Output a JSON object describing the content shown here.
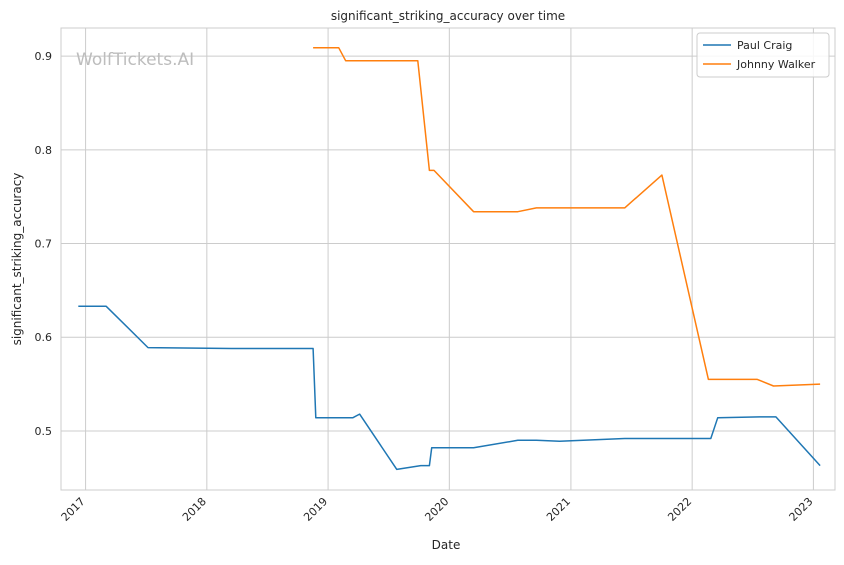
{
  "chart_data": {
    "type": "line",
    "title": "significant_striking_accuracy over time",
    "xlabel": "Date",
    "ylabel": "significant_striking_accuracy",
    "watermark": "WolfTickets.AI",
    "x_ticks": [
      "2017",
      "2018",
      "2019",
      "2020",
      "2021",
      "2022",
      "2023"
    ],
    "y_ticks": [
      "0.5",
      "0.6",
      "0.7",
      "0.8",
      "0.9"
    ],
    "xlim": [
      "2016-10-19",
      "2023-03-07"
    ],
    "ylim": [
      0.437,
      0.93
    ],
    "grid": true,
    "legend_position": "top-right",
    "series": [
      {
        "name": "Paul Craig",
        "color": "#1f77b4",
        "points": [
          [
            "2016-12-10",
            0.633
          ],
          [
            "2017-03-04",
            0.633
          ],
          [
            "2017-07-08",
            0.589
          ],
          [
            "2018-03-17",
            0.588
          ],
          [
            "2018-11-17",
            0.588
          ],
          [
            "2018-11-25",
            0.514
          ],
          [
            "2019-03-16",
            0.514
          ],
          [
            "2019-04-06",
            0.518
          ],
          [
            "2019-07-27",
            0.459
          ],
          [
            "2019-10-07",
            0.463
          ],
          [
            "2019-11-02",
            0.463
          ],
          [
            "2019-11-09",
            0.482
          ],
          [
            "2020-03-14",
            0.482
          ],
          [
            "2020-07-25",
            0.49
          ],
          [
            "2020-09-19",
            0.49
          ],
          [
            "2020-11-28",
            0.489
          ],
          [
            "2021-06-12",
            0.492
          ],
          [
            "2022-02-26",
            0.492
          ],
          [
            "2022-03-19",
            0.514
          ],
          [
            "2022-07-23",
            0.515
          ],
          [
            "2022-09-10",
            0.515
          ],
          [
            "2023-01-21",
            0.463
          ]
        ]
      },
      {
        "name": "Johnny Walker",
        "color": "#ff7f0e",
        "points": [
          [
            "2018-11-17",
            0.909
          ],
          [
            "2019-02-02",
            0.909
          ],
          [
            "2019-02-23",
            0.895
          ],
          [
            "2019-09-28",
            0.895
          ],
          [
            "2019-11-02",
            0.778
          ],
          [
            "2019-11-16",
            0.778
          ],
          [
            "2020-03-14",
            0.734
          ],
          [
            "2020-07-25",
            0.734
          ],
          [
            "2020-09-19",
            0.738
          ],
          [
            "2021-06-12",
            0.738
          ],
          [
            "2021-10-02",
            0.773
          ],
          [
            "2022-02-19",
            0.555
          ],
          [
            "2022-07-16",
            0.555
          ],
          [
            "2022-09-03",
            0.548
          ],
          [
            "2023-01-21",
            0.55
          ]
        ]
      }
    ]
  }
}
